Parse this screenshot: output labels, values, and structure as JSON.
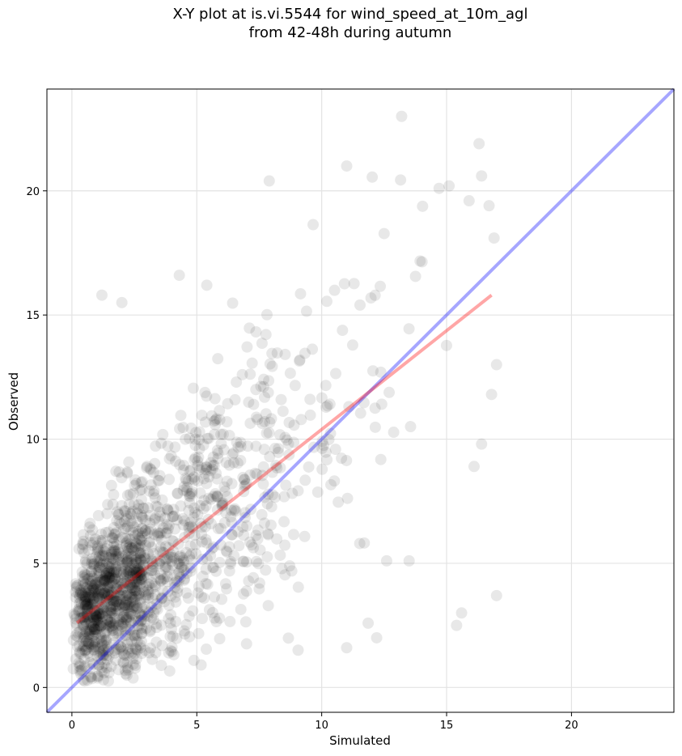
{
  "chart_data": {
    "type": "scatter",
    "title": "X-Y plot at is.vi.5544 for wind_speed_at_10m_agl\nfrom 42-48h during autumn",
    "xlabel": "Simulated",
    "ylabel": "Observed",
    "xlim": [
      -1,
      24.1
    ],
    "ylim": [
      -1,
      24.1
    ],
    "xticks": [
      0,
      5,
      10,
      15,
      20
    ],
    "yticks": [
      0,
      5,
      10,
      15,
      20
    ],
    "grid": true,
    "colors": {
      "points": "#000000",
      "identity_line": "#0000ff",
      "fit_line": "#ff0000"
    },
    "identity_line": {
      "from": [
        -1,
        -1
      ],
      "to": [
        24.1,
        24.1
      ]
    },
    "fit_line": {
      "from": [
        0.2,
        2.6
      ],
      "to": [
        16.8,
        15.8
      ]
    },
    "point_cloud": {
      "count": 1500,
      "seed": 7,
      "notable_points": [
        [
          13.2,
          23.0
        ],
        [
          16.3,
          21.9
        ],
        [
          11.0,
          21.0
        ],
        [
          16.4,
          20.6
        ],
        [
          7.9,
          20.4
        ],
        [
          15.1,
          20.2
        ],
        [
          14.7,
          20.1
        ],
        [
          16.7,
          19.4
        ],
        [
          15.9,
          19.6
        ],
        [
          16.9,
          18.1
        ],
        [
          1.2,
          15.8
        ],
        [
          2.0,
          15.5
        ],
        [
          5.4,
          16.2
        ],
        [
          4.3,
          16.6
        ],
        [
          17.0,
          3.7
        ],
        [
          16.4,
          9.8
        ],
        [
          15.4,
          2.5
        ],
        [
          15.6,
          3.0
        ],
        [
          16.1,
          8.9
        ],
        [
          17.0,
          13.0
        ],
        [
          16.8,
          11.8
        ],
        [
          12.6,
          5.1
        ],
        [
          13.5,
          5.1
        ],
        [
          11.0,
          1.6
        ],
        [
          12.2,
          2.0
        ]
      ]
    }
  }
}
